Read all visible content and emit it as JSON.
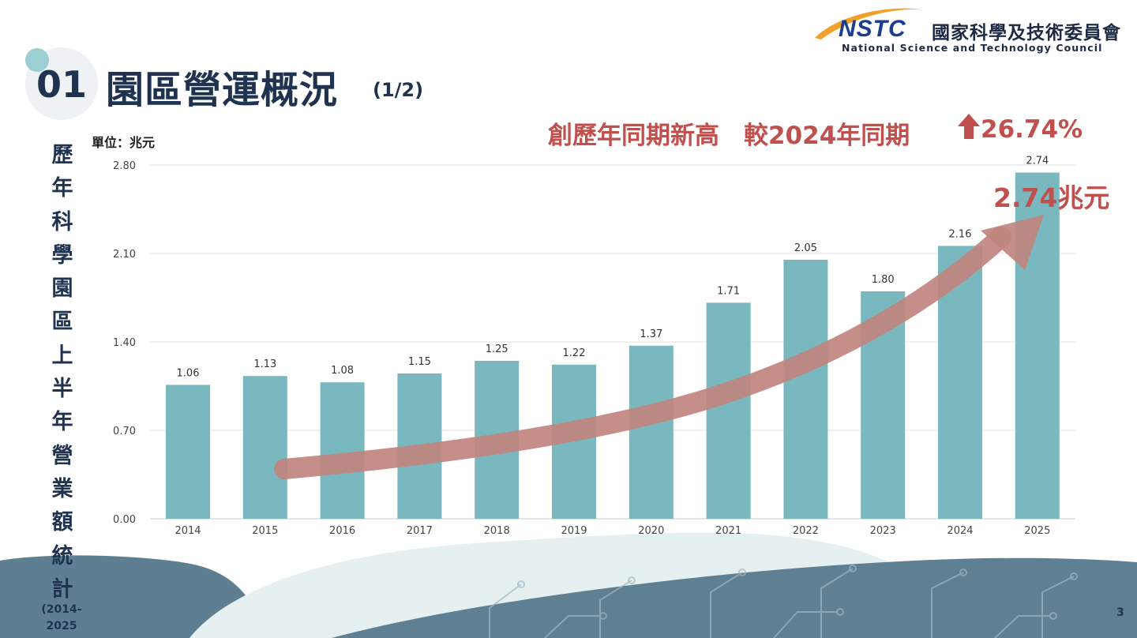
{
  "header": {
    "logo_text": "NSTC",
    "org_name_cn": "國家科學及技術委員會",
    "org_name_en": "National Science and Technology Council"
  },
  "section": {
    "number": "01",
    "title": "園區營運概況",
    "page": "(1/2)"
  },
  "headline": {
    "text": "創歷年同期新高　較2024年同期",
    "value": "26.74%",
    "arrow_icon": "up-arrow-icon"
  },
  "side_title": {
    "text": "歷年科學園區上半年營業額統計",
    "years": "(2014-2025"
  },
  "unit_label": "單位：兆元",
  "callout_label": "2.74兆元",
  "page_number": "3",
  "colors": {
    "bar": "#7ab8bf",
    "accent": "#c0504d",
    "trend_arrow": "#c0847e",
    "title": "#1f3350"
  },
  "chart_data": {
    "type": "bar",
    "categories": [
      "2014",
      "2015",
      "2016",
      "2017",
      "2018",
      "2019",
      "2020",
      "2021",
      "2022",
      "2023",
      "2024",
      "2025"
    ],
    "values": [
      1.06,
      1.13,
      1.08,
      1.15,
      1.25,
      1.22,
      1.37,
      1.71,
      2.05,
      1.8,
      2.16,
      2.74
    ],
    "data_labels": [
      "1.06",
      "1.13",
      "1.08",
      "1.15",
      "1.25",
      "1.22",
      "1.37",
      "1.71",
      "2.05",
      "1.80",
      "2.16",
      "2.74"
    ],
    "yticks": [
      "0.00",
      "0.70",
      "1.40",
      "2.10",
      "2.80"
    ],
    "ylim": [
      0,
      2.8
    ],
    "grid": true,
    "legend": "none"
  }
}
